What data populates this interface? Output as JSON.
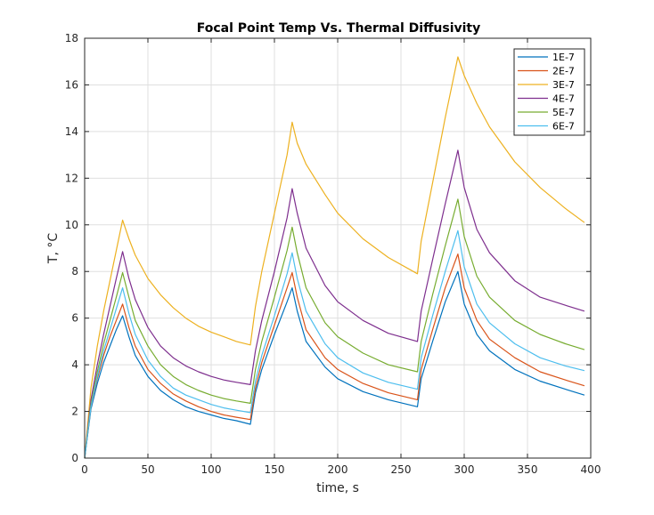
{
  "chart_data": {
    "type": "line",
    "title": "Focal Point Temp Vs. Thermal Diffusivity",
    "xlabel": "time, s",
    "ylabel": "T, °C",
    "xlim": [
      0,
      400
    ],
    "ylim": [
      0,
      18
    ],
    "xticks": [
      0,
      50,
      100,
      150,
      200,
      250,
      300,
      350,
      400
    ],
    "yticks": [
      0,
      2,
      4,
      6,
      8,
      10,
      12,
      14,
      16,
      18
    ],
    "grid": true,
    "legend_position": "top-right",
    "series": [
      {
        "name": "1E-7",
        "color": "#0072BD",
        "points": [
          [
            0,
            0
          ],
          [
            5,
            2.1
          ],
          [
            10,
            3.2
          ],
          [
            15,
            4.1
          ],
          [
            20,
            4.8
          ],
          [
            25,
            5.5
          ],
          [
            30,
            6.1
          ],
          [
            35,
            5.2
          ],
          [
            40,
            4.4
          ],
          [
            50,
            3.5
          ],
          [
            60,
            2.9
          ],
          [
            70,
            2.5
          ],
          [
            80,
            2.2
          ],
          [
            90,
            2.0
          ],
          [
            100,
            1.85
          ],
          [
            110,
            1.7
          ],
          [
            120,
            1.6
          ],
          [
            131,
            1.45
          ],
          [
            135,
            2.8
          ],
          [
            140,
            3.8
          ],
          [
            150,
            5.3
          ],
          [
            160,
            6.7
          ],
          [
            164,
            7.3
          ],
          [
            168,
            6.3
          ],
          [
            175,
            5.0
          ],
          [
            190,
            3.9
          ],
          [
            200,
            3.4
          ],
          [
            220,
            2.85
          ],
          [
            240,
            2.5
          ],
          [
            263,
            2.2
          ],
          [
            266,
            3.4
          ],
          [
            275,
            5.0
          ],
          [
            285,
            6.7
          ],
          [
            295,
            8.0
          ],
          [
            300,
            6.6
          ],
          [
            310,
            5.3
          ],
          [
            320,
            4.6
          ],
          [
            340,
            3.8
          ],
          [
            360,
            3.3
          ],
          [
            380,
            2.95
          ],
          [
            395,
            2.7
          ]
        ]
      },
      {
        "name": "2E-7",
        "color": "#D95319",
        "points": [
          [
            0,
            0
          ],
          [
            5,
            2.2
          ],
          [
            10,
            3.4
          ],
          [
            15,
            4.4
          ],
          [
            20,
            5.2
          ],
          [
            25,
            5.9
          ],
          [
            30,
            6.6
          ],
          [
            35,
            5.6
          ],
          [
            40,
            4.8
          ],
          [
            50,
            3.8
          ],
          [
            60,
            3.2
          ],
          [
            70,
            2.75
          ],
          [
            80,
            2.45
          ],
          [
            90,
            2.2
          ],
          [
            100,
            2.0
          ],
          [
            110,
            1.85
          ],
          [
            120,
            1.75
          ],
          [
            131,
            1.65
          ],
          [
            135,
            3.0
          ],
          [
            140,
            4.1
          ],
          [
            150,
            5.7
          ],
          [
            160,
            7.3
          ],
          [
            164,
            7.95
          ],
          [
            168,
            6.9
          ],
          [
            175,
            5.5
          ],
          [
            190,
            4.3
          ],
          [
            200,
            3.8
          ],
          [
            220,
            3.2
          ],
          [
            240,
            2.8
          ],
          [
            263,
            2.5
          ],
          [
            266,
            3.8
          ],
          [
            275,
            5.5
          ],
          [
            285,
            7.3
          ],
          [
            295,
            8.75
          ],
          [
            300,
            7.3
          ],
          [
            310,
            5.9
          ],
          [
            320,
            5.1
          ],
          [
            340,
            4.3
          ],
          [
            360,
            3.7
          ],
          [
            380,
            3.35
          ],
          [
            395,
            3.1
          ]
        ]
      },
      {
        "name": "3E-7",
        "color": "#EDB120",
        "points": [
          [
            0,
            0
          ],
          [
            5,
            3.0
          ],
          [
            10,
            4.8
          ],
          [
            15,
            6.3
          ],
          [
            20,
            7.6
          ],
          [
            25,
            8.9
          ],
          [
            30,
            10.2
          ],
          [
            35,
            9.4
          ],
          [
            40,
            8.7
          ],
          [
            50,
            7.7
          ],
          [
            60,
            7.0
          ],
          [
            70,
            6.45
          ],
          [
            80,
            6.0
          ],
          [
            90,
            5.65
          ],
          [
            100,
            5.4
          ],
          [
            110,
            5.2
          ],
          [
            120,
            5.0
          ],
          [
            131,
            4.85
          ],
          [
            135,
            6.5
          ],
          [
            140,
            8.0
          ],
          [
            150,
            10.5
          ],
          [
            160,
            13.0
          ],
          [
            164,
            14.4
          ],
          [
            168,
            13.5
          ],
          [
            175,
            12.6
          ],
          [
            190,
            11.3
          ],
          [
            200,
            10.5
          ],
          [
            220,
            9.4
          ],
          [
            240,
            8.6
          ],
          [
            263,
            7.9
          ],
          [
            266,
            9.3
          ],
          [
            275,
            11.8
          ],
          [
            285,
            14.6
          ],
          [
            295,
            17.2
          ],
          [
            300,
            16.4
          ],
          [
            310,
            15.2
          ],
          [
            320,
            14.2
          ],
          [
            340,
            12.7
          ],
          [
            360,
            11.6
          ],
          [
            380,
            10.7
          ],
          [
            395,
            10.1
          ]
        ]
      },
      {
        "name": "4E-7",
        "color": "#7E2F8E",
        "points": [
          [
            0,
            0
          ],
          [
            5,
            2.5
          ],
          [
            10,
            4.0
          ],
          [
            15,
            5.3
          ],
          [
            20,
            6.5
          ],
          [
            25,
            7.7
          ],
          [
            30,
            8.85
          ],
          [
            35,
            7.7
          ],
          [
            40,
            6.8
          ],
          [
            50,
            5.6
          ],
          [
            60,
            4.8
          ],
          [
            70,
            4.3
          ],
          [
            80,
            3.95
          ],
          [
            90,
            3.7
          ],
          [
            100,
            3.5
          ],
          [
            110,
            3.35
          ],
          [
            120,
            3.25
          ],
          [
            131,
            3.15
          ],
          [
            135,
            4.6
          ],
          [
            140,
            5.9
          ],
          [
            150,
            8.0
          ],
          [
            160,
            10.3
          ],
          [
            164,
            11.55
          ],
          [
            168,
            10.5
          ],
          [
            175,
            9.0
          ],
          [
            190,
            7.4
          ],
          [
            200,
            6.7
          ],
          [
            220,
            5.9
          ],
          [
            240,
            5.35
          ],
          [
            263,
            5.0
          ],
          [
            266,
            6.3
          ],
          [
            275,
            8.5
          ],
          [
            285,
            10.9
          ],
          [
            295,
            13.2
          ],
          [
            300,
            11.6
          ],
          [
            310,
            9.8
          ],
          [
            320,
            8.8
          ],
          [
            340,
            7.6
          ],
          [
            360,
            6.9
          ],
          [
            380,
            6.55
          ],
          [
            395,
            6.3
          ]
        ]
      },
      {
        "name": "5E-7",
        "color": "#77AC30",
        "points": [
          [
            0,
            0
          ],
          [
            5,
            2.3
          ],
          [
            10,
            3.7
          ],
          [
            15,
            4.9
          ],
          [
            20,
            5.9
          ],
          [
            25,
            6.9
          ],
          [
            30,
            7.95
          ],
          [
            35,
            6.9
          ],
          [
            40,
            5.9
          ],
          [
            50,
            4.8
          ],
          [
            60,
            4.0
          ],
          [
            70,
            3.5
          ],
          [
            80,
            3.15
          ],
          [
            90,
            2.9
          ],
          [
            100,
            2.7
          ],
          [
            110,
            2.55
          ],
          [
            120,
            2.45
          ],
          [
            131,
            2.35
          ],
          [
            135,
            3.8
          ],
          [
            140,
            5.0
          ],
          [
            150,
            6.9
          ],
          [
            160,
            8.9
          ],
          [
            164,
            9.9
          ],
          [
            168,
            8.8
          ],
          [
            175,
            7.3
          ],
          [
            190,
            5.8
          ],
          [
            200,
            5.2
          ],
          [
            220,
            4.5
          ],
          [
            240,
            4.0
          ],
          [
            263,
            3.7
          ],
          [
            266,
            5.0
          ],
          [
            275,
            7.0
          ],
          [
            285,
            9.1
          ],
          [
            295,
            11.1
          ],
          [
            300,
            9.5
          ],
          [
            310,
            7.8
          ],
          [
            320,
            6.9
          ],
          [
            340,
            5.9
          ],
          [
            360,
            5.3
          ],
          [
            380,
            4.9
          ],
          [
            395,
            4.65
          ]
        ]
      },
      {
        "name": "6E-7",
        "color": "#4DBEEE",
        "points": [
          [
            0,
            0
          ],
          [
            5,
            2.2
          ],
          [
            10,
            3.5
          ],
          [
            15,
            4.6
          ],
          [
            20,
            5.5
          ],
          [
            25,
            6.4
          ],
          [
            30,
            7.3
          ],
          [
            35,
            6.2
          ],
          [
            40,
            5.3
          ],
          [
            50,
            4.2
          ],
          [
            60,
            3.5
          ],
          [
            70,
            3.0
          ],
          [
            80,
            2.7
          ],
          [
            90,
            2.5
          ],
          [
            100,
            2.3
          ],
          [
            110,
            2.15
          ],
          [
            120,
            2.05
          ],
          [
            131,
            1.95
          ],
          [
            135,
            3.3
          ],
          [
            140,
            4.4
          ],
          [
            150,
            6.1
          ],
          [
            160,
            7.9
          ],
          [
            164,
            8.8
          ],
          [
            168,
            7.7
          ],
          [
            175,
            6.3
          ],
          [
            190,
            4.9
          ],
          [
            200,
            4.3
          ],
          [
            220,
            3.65
          ],
          [
            240,
            3.25
          ],
          [
            263,
            2.95
          ],
          [
            266,
            4.3
          ],
          [
            275,
            6.1
          ],
          [
            285,
            8.0
          ],
          [
            295,
            9.75
          ],
          [
            300,
            8.2
          ],
          [
            310,
            6.6
          ],
          [
            320,
            5.8
          ],
          [
            340,
            4.9
          ],
          [
            360,
            4.3
          ],
          [
            380,
            3.95
          ],
          [
            395,
            3.75
          ]
        ]
      }
    ]
  }
}
